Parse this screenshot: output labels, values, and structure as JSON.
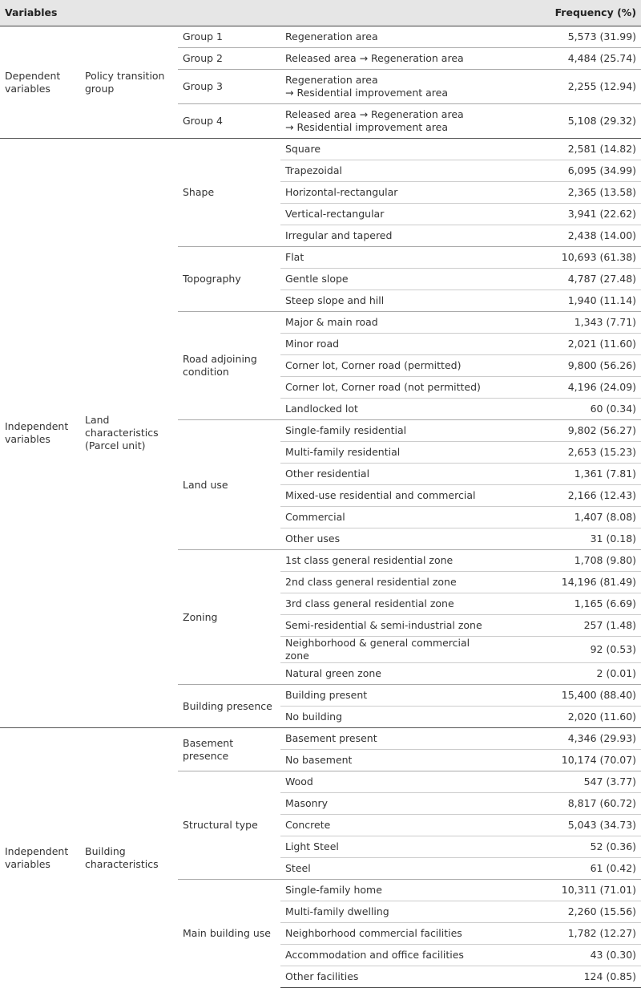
{
  "header": {
    "variables": "Variables",
    "frequency": "Frequency (%)"
  },
  "sections": [
    {
      "type": "Dependent variables",
      "category": "Policy transition group",
      "groups": [
        {
          "label": "Group 1",
          "items": [
            {
              "label": "Regeneration area",
              "frequency": "5,573 (31.99)"
            }
          ]
        },
        {
          "label": "Group 2",
          "items": [
            {
              "label": "Released area → Regeneration area",
              "frequency": "4,484 (25.74)"
            }
          ]
        },
        {
          "label": "Group 3",
          "items": [
            {
              "label": "Regeneration area\n→ Residential improvement area",
              "frequency": "2,255 (12.94)"
            }
          ]
        },
        {
          "label": "Group 4",
          "items": [
            {
              "label": "Released area → Regeneration area\n→ Residential improvement area",
              "frequency": "5,108 (29.32)"
            }
          ]
        }
      ]
    },
    {
      "type": "Independent variables",
      "category": "Land characteristics (Parcel unit)",
      "groups": [
        {
          "label": "Shape",
          "items": [
            {
              "label": "Square",
              "frequency": "2,581 (14.82)"
            },
            {
              "label": "Trapezoidal",
              "frequency": "6,095 (34.99)"
            },
            {
              "label": "Horizontal-rectangular",
              "frequency": "2,365 (13.58)"
            },
            {
              "label": "Vertical-rectangular",
              "frequency": "3,941 (22.62)"
            },
            {
              "label": "Irregular and tapered",
              "frequency": "2,438 (14.00)"
            }
          ]
        },
        {
          "label": "Topography",
          "items": [
            {
              "label": "Flat",
              "frequency": "10,693 (61.38)"
            },
            {
              "label": "Gentle slope",
              "frequency": "4,787 (27.48)"
            },
            {
              "label": "Steep slope and hill",
              "frequency": "1,940 (11.14)"
            }
          ]
        },
        {
          "label": "Road adjoining condition",
          "items": [
            {
              "label": "Major & main road",
              "frequency": "1,343 (7.71)"
            },
            {
              "label": "Minor road",
              "frequency": "2,021 (11.60)"
            },
            {
              "label": "Corner lot, Corner road (permitted)",
              "frequency": "9,800 (56.26)"
            },
            {
              "label": "Corner lot, Corner road (not permitted)",
              "frequency": "4,196 (24.09)"
            },
            {
              "label": "Landlocked lot",
              "frequency": "60 (0.34)"
            }
          ]
        },
        {
          "label": "Land use",
          "items": [
            {
              "label": "Single-family residential",
              "frequency": "9,802 (56.27)"
            },
            {
              "label": "Multi-family residential",
              "frequency": "2,653 (15.23)"
            },
            {
              "label": "Other residential",
              "frequency": "1,361 (7.81)"
            },
            {
              "label": "Mixed-use residential and commercial",
              "frequency": "2,166 (12.43)"
            },
            {
              "label": "Commercial",
              "frequency": "1,407 (8.08)"
            },
            {
              "label": "Other uses",
              "frequency": "31 (0.18)"
            }
          ]
        },
        {
          "label": "Zoning",
          "items": [
            {
              "label": "1st class general residential zone",
              "frequency": "1,708 (9.80)"
            },
            {
              "label": "2nd class general residential zone",
              "frequency": "14,196 (81.49)"
            },
            {
              "label": "3rd class general residential zone",
              "frequency": "1,165 (6.69)"
            },
            {
              "label": "Semi-residential & semi-industrial zone",
              "frequency": "257 (1.48)"
            },
            {
              "label": "Neighborhood & general commercial zone",
              "frequency": "92 (0.53)"
            },
            {
              "label": "Natural green zone",
              "frequency": "2 (0.01)"
            }
          ]
        },
        {
          "label": "Building presence",
          "items": [
            {
              "label": "Building present",
              "frequency": "15,400 (88.40)"
            },
            {
              "label": "No building",
              "frequency": "2,020 (11.60)"
            }
          ]
        }
      ]
    },
    {
      "type": "Independent variables",
      "category": "Building characteristics",
      "groups": [
        {
          "label": "Basement\npresence",
          "items": [
            {
              "label": "Basement present",
              "frequency": "4,346 (29.93)"
            },
            {
              "label": "No basement",
              "frequency": "10,174 (70.07)"
            }
          ]
        },
        {
          "label": "Structural type",
          "items": [
            {
              "label": "Wood",
              "frequency": "547 (3.77)"
            },
            {
              "label": "Masonry",
              "frequency": "8,817 (60.72)"
            },
            {
              "label": "Concrete",
              "frequency": "5,043 (34.73)"
            },
            {
              "label": "Light Steel",
              "frequency": "52 (0.36)"
            },
            {
              "label": "Steel",
              "frequency": "61 (0.42)"
            }
          ]
        },
        {
          "label": "Main building use",
          "items": [
            {
              "label": "Single-family home",
              "frequency": "10,311 (71.01)"
            },
            {
              "label": "Multi-family dwelling",
              "frequency": "2,260 (15.56)"
            },
            {
              "label": "Neighborhood commercial facilities",
              "frequency": "1,782 (12.27)"
            },
            {
              "label": "Accommodation and office facilities",
              "frequency": "43 (0.30)"
            },
            {
              "label": "Other facilities",
              "frequency": "124 (0.85)"
            }
          ]
        }
      ]
    }
  ]
}
